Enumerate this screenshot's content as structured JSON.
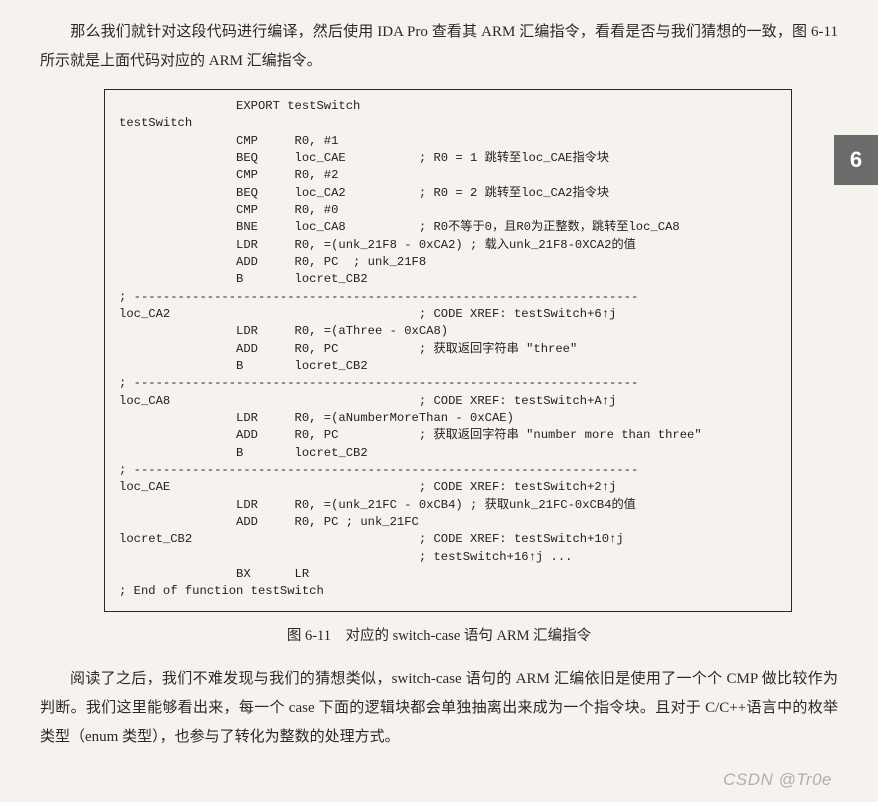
{
  "intro": {
    "text": "　　那么我们就针对这段代码进行编译，然后使用 IDA Pro 查看其 ARM 汇编指令，看看是否与我们猜想的一致，图 6-11 所示就是上面代码对应的 ARM 汇编指令。"
  },
  "chapter_tab": "6",
  "code": {
    "l00": "                EXPORT testSwitch",
    "l01": "testSwitch",
    "l02": "                CMP     R0, #1",
    "l03": "                BEQ     loc_CAE          ; R0 = 1 跳转至loc_CAE指令块",
    "l04": "                CMP     R0, #2",
    "l05": "                BEQ     loc_CA2          ; R0 = 2 跳转至loc_CA2指令块",
    "l06": "                CMP     R0, #0",
    "l07": "                BNE     loc_CA8          ; R0不等于0，且R0为正整数，跳转至loc_CA8",
    "l08": "                LDR     R0, =(unk_21F8 - 0xCA2) ; 载入unk_21F8-0XCA2的值",
    "l09": "                ADD     R0, PC  ; unk_21F8",
    "l10": "                B       locret_CB2",
    "sep1": "; ---------------------------------------------------------------------",
    "l11": "",
    "l12": "loc_CA2                                  ; CODE XREF: testSwitch+6↑j",
    "l13": "                LDR     R0, =(aThree - 0xCA8)",
    "l14": "                ADD     R0, PC           ; 获取返回字符串 \"three\"",
    "l15": "                B       locret_CB2",
    "sep2": "; ---------------------------------------------------------------------",
    "l16": "",
    "l17": "loc_CA8                                  ; CODE XREF: testSwitch+A↑j",
    "l18": "                LDR     R0, =(aNumberMoreThan - 0xCAE)",
    "l19": "                ADD     R0, PC           ; 获取返回字符串 \"number more than three\"",
    "l20": "                B       locret_CB2",
    "sep3": "; ---------------------------------------------------------------------",
    "l21": "",
    "l22": "loc_CAE                                  ; CODE XREF: testSwitch+2↑j",
    "l23": "                LDR     R0, =(unk_21FC - 0xCB4) ; 获取unk_21FC-0xCB4的值",
    "l24": "                ADD     R0, PC ; unk_21FC",
    "l25": "",
    "l26": "locret_CB2                               ; CODE XREF: testSwitch+10↑j",
    "l27": "                                         ; testSwitch+16↑j ...",
    "l28": "                BX      LR",
    "l29": "; End of function testSwitch"
  },
  "caption": "图 6-11　对应的 switch-case 语句 ARM 汇编指令",
  "closing": "阅读了之后，我们不难发现与我们的猜想类似，switch-case 语句的 ARM 汇编依旧是使用了一个个 CMP 做比较作为判断。我们这里能够看出来，每一个 case 下面的逻辑块都会单独抽离出来成为一个指令块。且对于 C/C++语言中的枚举类型（enum 类型），也参与了转化为整数的处理方式。",
  "watermark": "CSDN @Tr0e"
}
